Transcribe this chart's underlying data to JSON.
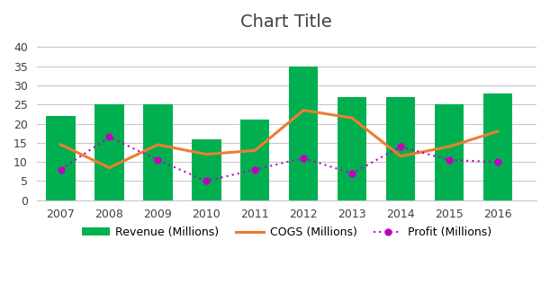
{
  "years": [
    2007,
    2008,
    2009,
    2010,
    2011,
    2012,
    2013,
    2014,
    2015,
    2016
  ],
  "revenue": [
    22,
    25,
    25,
    16,
    21,
    35,
    27,
    27,
    25,
    28
  ],
  "cogs": [
    14.5,
    8.5,
    14.5,
    12,
    13,
    23.5,
    21.5,
    11.5,
    14,
    18
  ],
  "profit": [
    8,
    16.5,
    10.5,
    5,
    8,
    11,
    7,
    14,
    10.5,
    10
  ],
  "bar_color": "#00B050",
  "cogs_color": "#ED7D31",
  "profit_color": "#C000C0",
  "title": "Chart Title",
  "ylim": [
    0,
    42
  ],
  "yticks": [
    0,
    5,
    10,
    15,
    20,
    25,
    30,
    35,
    40
  ],
  "background_color": "#FFFFFF",
  "legend_labels": [
    "Revenue (Millions)",
    "COGS (Millions)",
    "Profit (Millions)"
  ]
}
